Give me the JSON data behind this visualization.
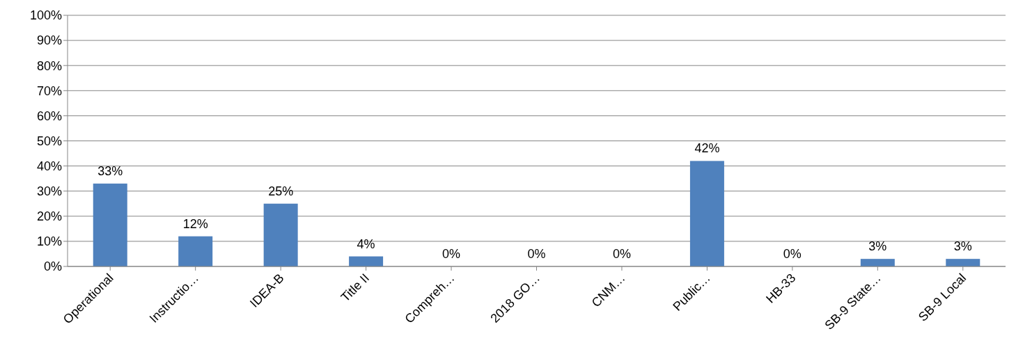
{
  "chart_data": {
    "type": "bar",
    "categories": [
      "Operational",
      "Instructio…",
      "IDEA-B",
      "Title II",
      "Compreh…",
      "2018 GO…",
      "CNM…",
      "Public…",
      "HB-33",
      "SB-9 State…",
      "SB-9 Local"
    ],
    "values": [
      33,
      12,
      25,
      4,
      0,
      0,
      0,
      42,
      0,
      3,
      3
    ],
    "value_labels": [
      "33%",
      "12%",
      "25%",
      "4%",
      "0%",
      "0%",
      "0%",
      "42%",
      "0%",
      "3%",
      "3%"
    ],
    "color": "#4f81bd",
    "ylim": [
      0,
      100
    ],
    "yticks": [
      {
        "value": 0,
        "label": "0%"
      },
      {
        "value": 10,
        "label": "10%"
      },
      {
        "value": 20,
        "label": "20%"
      },
      {
        "value": 30,
        "label": "30%"
      },
      {
        "value": 40,
        "label": "40%"
      },
      {
        "value": 50,
        "label": "50%"
      },
      {
        "value": 60,
        "label": "60%"
      },
      {
        "value": 70,
        "label": "70%"
      },
      {
        "value": 80,
        "label": "80%"
      },
      {
        "value": 90,
        "label": "90%"
      },
      {
        "value": 100,
        "label": "100%"
      }
    ],
    "grid": "y"
  }
}
